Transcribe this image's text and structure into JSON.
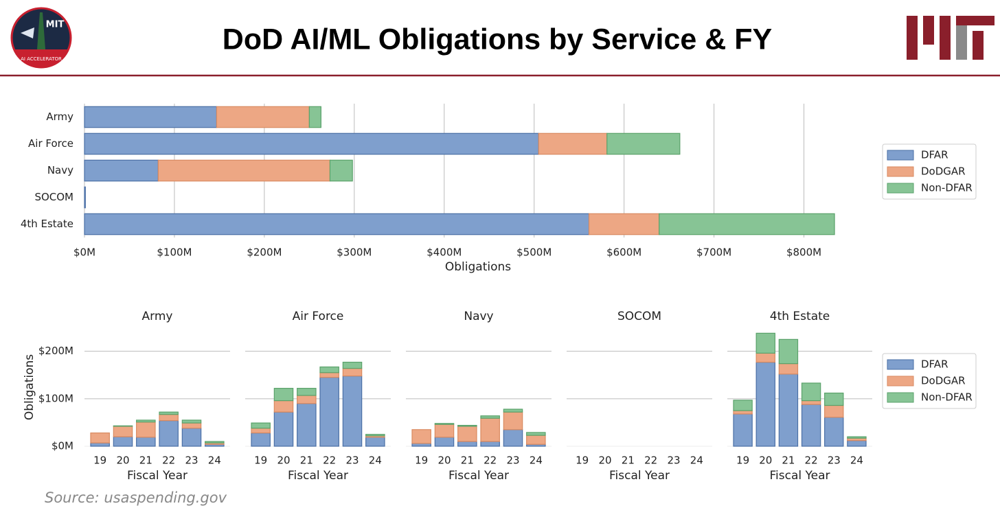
{
  "header": {
    "title": "DoD AI/ML Obligations by Service & FY",
    "logo_text": [
      "MIT",
      "AI ACCELERATOR"
    ]
  },
  "source": "Source: usaspending.gov",
  "chart_data": [
    {
      "type": "bar",
      "orientation": "horizontal",
      "stacked": true,
      "xlabel": "Obligations",
      "legend": "right",
      "grid": true,
      "categories": [
        "Army",
        "Air Force",
        "Navy",
        "SOCOM",
        "4th Estate"
      ],
      "series": [
        {
          "name": "DFAR",
          "color": "#7f9fcd",
          "values": [
            147,
            505,
            82,
            1,
            561
          ]
        },
        {
          "name": "DoDGAR",
          "color": "#eda784",
          "values": [
            103,
            76,
            191,
            0,
            78
          ]
        },
        {
          "name": "Non-DFAR",
          "color": "#87c495",
          "values": [
            13,
            81,
            25,
            0,
            195
          ]
        }
      ],
      "xlim": [
        0,
        850
      ],
      "xticks": [
        {
          "value": 0,
          "label": "$0M"
        },
        {
          "value": 100,
          "label": "$100M"
        },
        {
          "value": 200,
          "label": "$200M"
        },
        {
          "value": 300,
          "label": "$300M"
        },
        {
          "value": 400,
          "label": "$400M"
        },
        {
          "value": 500,
          "label": "$500M"
        },
        {
          "value": 600,
          "label": "$600M"
        },
        {
          "value": 700,
          "label": "$700M"
        },
        {
          "value": 800,
          "label": "$800M"
        }
      ]
    },
    {
      "type": "bar",
      "orientation": "vertical",
      "stacked": true,
      "title": "Army",
      "xlabel": "Fiscal Year",
      "ylabel": "Obligations",
      "grid": true,
      "ytick_labels": true,
      "categories": [
        "19",
        "20",
        "21",
        "22",
        "23",
        "24"
      ],
      "series": [
        {
          "name": "DFAR",
          "color": "#7f9fcd",
          "values": [
            7,
            20,
            19,
            54,
            38,
            4
          ]
        },
        {
          "name": "DoDGAR",
          "color": "#eda784",
          "values": [
            21,
            22,
            32,
            13,
            11,
            3
          ]
        },
        {
          "name": "Non-DFAR",
          "color": "#87c495",
          "values": [
            0,
            1,
            4,
            5,
            6,
            3
          ]
        }
      ],
      "ylim": [
        0,
        240
      ],
      "yticks": [
        {
          "value": 0,
          "label": "$0M"
        },
        {
          "value": 100,
          "label": "$100M"
        },
        {
          "value": 200,
          "label": "$200M"
        }
      ]
    },
    {
      "type": "bar",
      "orientation": "vertical",
      "stacked": true,
      "title": "Air Force",
      "xlabel": "Fiscal Year",
      "grid": true,
      "ytick_labels": false,
      "categories": [
        "19",
        "20",
        "21",
        "22",
        "23",
        "24"
      ],
      "series": [
        {
          "name": "DFAR",
          "color": "#7f9fcd",
          "values": [
            28,
            72,
            90,
            145,
            148,
            19
          ]
        },
        {
          "name": "DoDGAR",
          "color": "#eda784",
          "values": [
            10,
            24,
            17,
            10,
            16,
            3
          ]
        },
        {
          "name": "Non-DFAR",
          "color": "#87c495",
          "values": [
            11,
            26,
            15,
            12,
            13,
            3
          ]
        }
      ],
      "ylim": [
        0,
        240
      ],
      "yticks": [
        {
          "value": 0,
          "label": "$0M"
        },
        {
          "value": 100,
          "label": "$100M"
        },
        {
          "value": 200,
          "label": "$200M"
        }
      ]
    },
    {
      "type": "bar",
      "orientation": "vertical",
      "stacked": true,
      "title": "Navy",
      "xlabel": "Fiscal Year",
      "grid": true,
      "ytick_labels": false,
      "categories": [
        "19",
        "20",
        "21",
        "22",
        "23",
        "24"
      ],
      "series": [
        {
          "name": "DFAR",
          "color": "#7f9fcd",
          "values": [
            6,
            19,
            10,
            10,
            35,
            4
          ]
        },
        {
          "name": "DoDGAR",
          "color": "#eda784",
          "values": [
            29,
            27,
            32,
            49,
            37,
            19
          ]
        },
        {
          "name": "Non-DFAR",
          "color": "#87c495",
          "values": [
            0,
            2,
            2,
            5,
            6,
            6
          ]
        }
      ],
      "ylim": [
        0,
        240
      ],
      "yticks": [
        {
          "value": 0,
          "label": "$0M"
        },
        {
          "value": 100,
          "label": "$100M"
        },
        {
          "value": 200,
          "label": "$200M"
        }
      ]
    },
    {
      "type": "bar",
      "orientation": "vertical",
      "stacked": true,
      "title": "SOCOM",
      "xlabel": "Fiscal Year",
      "grid": true,
      "ytick_labels": false,
      "categories": [
        "19",
        "20",
        "21",
        "22",
        "23",
        "24"
      ],
      "series": [
        {
          "name": "DFAR",
          "color": "#7f9fcd",
          "values": [
            0,
            0,
            0,
            0,
            0,
            0
          ]
        },
        {
          "name": "DoDGAR",
          "color": "#eda784",
          "values": [
            0,
            0,
            0,
            0,
            0,
            0
          ]
        },
        {
          "name": "Non-DFAR",
          "color": "#87c495",
          "values": [
            0,
            0,
            0,
            0,
            0,
            0
          ]
        }
      ],
      "ylim": [
        0,
        240
      ],
      "yticks": [
        {
          "value": 0,
          "label": "$0M"
        },
        {
          "value": 100,
          "label": "$100M"
        },
        {
          "value": 200,
          "label": "$200M"
        }
      ]
    },
    {
      "type": "bar",
      "orientation": "vertical",
      "stacked": true,
      "title": "4th Estate",
      "xlabel": "Fiscal Year",
      "legend": "right",
      "grid": true,
      "ytick_labels": false,
      "categories": [
        "19",
        "20",
        "21",
        "22",
        "23",
        "24"
      ],
      "series": [
        {
          "name": "DFAR",
          "color": "#7f9fcd",
          "values": [
            68,
            177,
            152,
            88,
            61,
            12
          ]
        },
        {
          "name": "DoDGAR",
          "color": "#eda784",
          "values": [
            7,
            19,
            22,
            8,
            25,
            5
          ]
        },
        {
          "name": "Non-DFAR",
          "color": "#87c495",
          "values": [
            22,
            42,
            51,
            37,
            26,
            3
          ]
        }
      ],
      "ylim": [
        0,
        240
      ],
      "yticks": [
        {
          "value": 0,
          "label": "$0M"
        },
        {
          "value": 100,
          "label": "$100M"
        },
        {
          "value": 200,
          "label": "$200M"
        }
      ]
    }
  ]
}
